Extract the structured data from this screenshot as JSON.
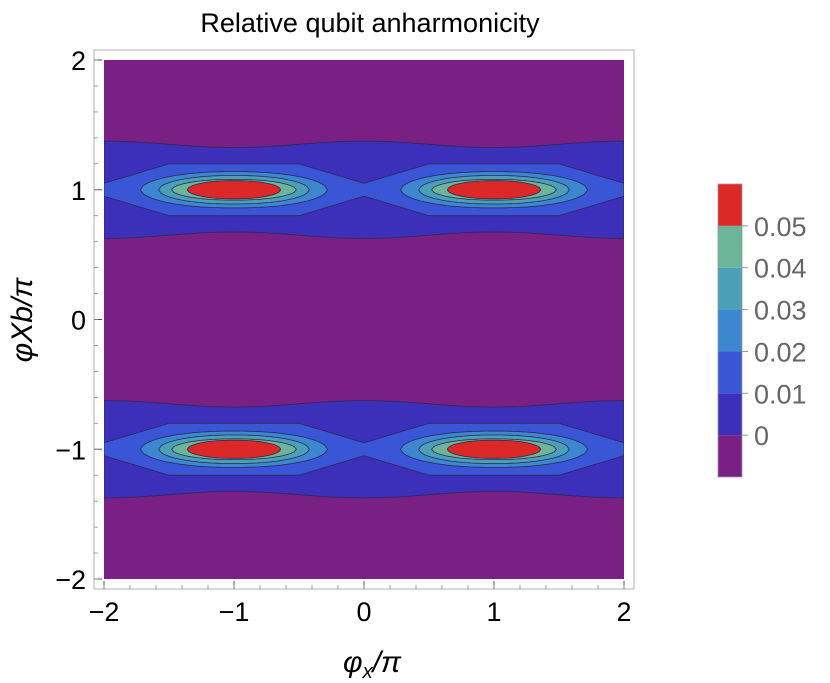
{
  "chart_data": {
    "type": "heatmap",
    "subtype": "contour",
    "title": "Relative qubit anharmonicity",
    "xlabel": "φx/π",
    "ylabel": "φXb/π",
    "xlim": [
      -2,
      2
    ],
    "ylim": [
      -2,
      2
    ],
    "x_ticks": [
      {
        "value": -2,
        "label": "−2"
      },
      {
        "value": -1,
        "label": "−1"
      },
      {
        "value": 0,
        "label": "0"
      },
      {
        "value": 1,
        "label": "1"
      },
      {
        "value": 2,
        "label": "2"
      }
    ],
    "y_ticks": [
      {
        "value": -2,
        "label": "−2"
      },
      {
        "value": -1,
        "label": "−1"
      },
      {
        "value": 0,
        "label": "0"
      },
      {
        "value": 1,
        "label": "1"
      },
      {
        "value": 2,
        "label": "2"
      }
    ],
    "contour_levels": [
      0,
      0.01,
      0.02,
      0.03,
      0.04,
      0.05
    ],
    "colorbar": {
      "labels": [
        "0",
        "0.01",
        "0.02",
        "0.03",
        "0.04",
        "0.05"
      ],
      "colors": [
        "#7a1f84",
        "#3c2fba",
        "#3a55d6",
        "#3d86d0",
        "#4ba0b8",
        "#6db59a",
        "#dd2828"
      ]
    },
    "peaks": [
      {
        "x": -1,
        "y": 1,
        "value_above": 0.05
      },
      {
        "x": 1,
        "y": 1,
        "value_above": 0.05
      },
      {
        "x": -1,
        "y": -1,
        "value_above": 0.05
      },
      {
        "x": 1,
        "y": -1,
        "value_above": 0.05
      }
    ],
    "contour_extents": [
      {
        "level": 0,
        "color": "#3c2fba",
        "y_half_width": 0.35
      },
      {
        "level": 0.01,
        "color": "#3a55d6",
        "y_half_width": 0.2
      },
      {
        "level": 0.02,
        "color": "#3d86d0",
        "y_half_width": 0.14
      },
      {
        "level": 0.03,
        "color": "#4ba0b8",
        "y_half_width": 0.11
      },
      {
        "level": 0.04,
        "color": "#6db59a",
        "y_half_width": 0.08
      },
      {
        "level": 0.05,
        "color": "#dd2828",
        "y_half_width": 0.07
      }
    ]
  }
}
